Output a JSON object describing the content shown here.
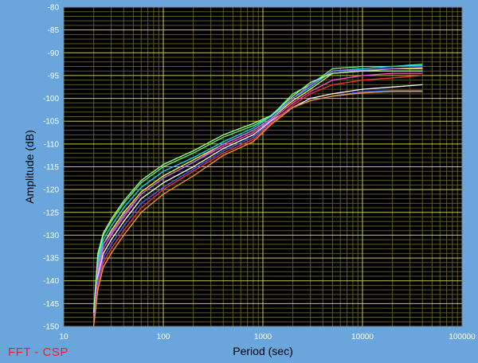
{
  "footer_label": "FFT - CSP",
  "colors": {
    "background": "#6aa6dc",
    "plot_background": "#000000",
    "grid_major": "#c8c84a",
    "grid_minor": "#5a5a26",
    "tick_label": "#ffffff",
    "axis_title": "#000000",
    "footer_label": "#ff1a1a"
  },
  "chart_data": {
    "type": "line",
    "xlabel": "Period (sec)",
    "ylabel": "Amplitude (dB)",
    "x_scale": "log",
    "xlim": [
      10,
      100000
    ],
    "ylim": [
      -150,
      -80
    ],
    "grid": true,
    "x_tick_labels": [
      "10",
      "100",
      "1000",
      "10000",
      "100000"
    ],
    "y_tick_labels": [
      "-80",
      "-85",
      "-90",
      "-95",
      "-100",
      "-105",
      "-110",
      "-115",
      "-120",
      "-125",
      "-130",
      "-135",
      "-140",
      "-145",
      "-150"
    ],
    "series": [
      {
        "color": "#66ff66",
        "values": [
          [
            20,
            -147
          ],
          [
            22,
            -135
          ],
          [
            25,
            -130
          ],
          [
            30,
            -127
          ],
          [
            40,
            -123
          ],
          [
            60,
            -118.5
          ],
          [
            100,
            -115
          ],
          [
            200,
            -112
          ],
          [
            400,
            -108.5
          ],
          [
            800,
            -106
          ],
          [
            1200,
            -104
          ],
          [
            2000,
            -99
          ],
          [
            3000,
            -97
          ],
          [
            5000,
            -93.5
          ],
          [
            10000,
            -93
          ],
          [
            20000,
            -93
          ],
          [
            40000,
            -92.5
          ]
        ]
      },
      {
        "color": "#00e0ff",
        "values": [
          [
            20,
            -148
          ],
          [
            22,
            -136
          ],
          [
            25,
            -131
          ],
          [
            30,
            -128
          ],
          [
            40,
            -124
          ],
          [
            60,
            -119.5
          ],
          [
            100,
            -116
          ],
          [
            200,
            -113
          ],
          [
            400,
            -109.5
          ],
          [
            800,
            -106.5
          ],
          [
            1200,
            -104
          ],
          [
            2000,
            -100
          ],
          [
            3000,
            -97.5
          ],
          [
            5000,
            -94
          ],
          [
            10000,
            -93.5
          ],
          [
            20000,
            -93
          ],
          [
            40000,
            -92.8
          ]
        ]
      },
      {
        "color": "#ffff40",
        "values": [
          [
            20,
            -148
          ],
          [
            22,
            -137
          ],
          [
            25,
            -132
          ],
          [
            30,
            -129
          ],
          [
            40,
            -125
          ],
          [
            60,
            -120.5
          ],
          [
            100,
            -117
          ],
          [
            200,
            -113.5
          ],
          [
            400,
            -110
          ],
          [
            800,
            -107
          ],
          [
            1200,
            -104.5
          ],
          [
            2000,
            -100.5
          ],
          [
            3000,
            -98
          ],
          [
            5000,
            -94.5
          ],
          [
            10000,
            -94
          ],
          [
            20000,
            -93.5
          ],
          [
            40000,
            -93.5
          ]
        ]
      },
      {
        "color": "#ff4fd8",
        "values": [
          [
            20,
            -148
          ],
          [
            22,
            -138
          ],
          [
            25,
            -133
          ],
          [
            30,
            -130
          ],
          [
            40,
            -126
          ],
          [
            60,
            -121
          ],
          [
            100,
            -117.5
          ],
          [
            200,
            -114
          ],
          [
            400,
            -110.5
          ],
          [
            800,
            -107.5
          ],
          [
            1200,
            -104.8
          ],
          [
            2000,
            -101
          ],
          [
            3000,
            -98.5
          ],
          [
            5000,
            -96
          ],
          [
            10000,
            -95
          ],
          [
            20000,
            -94.5
          ],
          [
            40000,
            -94.5
          ]
        ]
      },
      {
        "color": "#ffffff",
        "values": [
          [
            20,
            -149
          ],
          [
            22,
            -139
          ],
          [
            25,
            -134
          ],
          [
            30,
            -131
          ],
          [
            40,
            -127
          ],
          [
            60,
            -122
          ],
          [
            100,
            -118.5
          ],
          [
            200,
            -115
          ],
          [
            400,
            -111
          ],
          [
            800,
            -108
          ],
          [
            1200,
            -105
          ],
          [
            2000,
            -102
          ],
          [
            3000,
            -100
          ],
          [
            5000,
            -99
          ],
          [
            10000,
            -98
          ],
          [
            20000,
            -97.5
          ],
          [
            40000,
            -97
          ]
        ]
      },
      {
        "color": "#4466ff",
        "values": [
          [
            20,
            -149
          ],
          [
            22,
            -140
          ],
          [
            25,
            -135
          ],
          [
            30,
            -132
          ],
          [
            40,
            -128
          ],
          [
            60,
            -123
          ],
          [
            100,
            -119.5
          ],
          [
            200,
            -115.5
          ],
          [
            400,
            -111.5
          ],
          [
            800,
            -108.5
          ],
          [
            1200,
            -105.2
          ],
          [
            2000,
            -102
          ],
          [
            3000,
            -100.5
          ],
          [
            5000,
            -99.5
          ],
          [
            10000,
            -98.5
          ],
          [
            20000,
            -98.3
          ],
          [
            40000,
            -98.3
          ]
        ]
      },
      {
        "color": "#ff3030",
        "values": [
          [
            20,
            -149
          ],
          [
            22,
            -141
          ],
          [
            25,
            -136
          ],
          [
            30,
            -133
          ],
          [
            40,
            -129
          ],
          [
            60,
            -124
          ],
          [
            100,
            -120
          ],
          [
            200,
            -116
          ],
          [
            400,
            -112
          ],
          [
            800,
            -109
          ],
          [
            1200,
            -105.5
          ],
          [
            2000,
            -101.5
          ],
          [
            3000,
            -99
          ],
          [
            5000,
            -97
          ],
          [
            10000,
            -96
          ],
          [
            20000,
            -95.5
          ],
          [
            40000,
            -95
          ]
        ]
      },
      {
        "color": "#ff9a30",
        "values": [
          [
            20,
            -150
          ],
          [
            22,
            -142
          ],
          [
            25,
            -137
          ],
          [
            30,
            -134
          ],
          [
            40,
            -130
          ],
          [
            60,
            -125
          ],
          [
            100,
            -121
          ],
          [
            200,
            -117
          ],
          [
            400,
            -112.5
          ],
          [
            800,
            -109.5
          ],
          [
            1200,
            -105.8
          ],
          [
            2000,
            -102
          ],
          [
            3000,
            -100.5
          ],
          [
            5000,
            -99.5
          ],
          [
            10000,
            -98.8
          ],
          [
            20000,
            -98.5
          ],
          [
            40000,
            -98.5
          ]
        ]
      },
      {
        "color": "#b070ff",
        "values": [
          [
            20,
            -148
          ],
          [
            22,
            -137
          ],
          [
            25,
            -132
          ],
          [
            30,
            -129.5
          ],
          [
            40,
            -125.5
          ],
          [
            60,
            -121
          ],
          [
            100,
            -117.5
          ],
          [
            200,
            -114
          ],
          [
            400,
            -110
          ],
          [
            800,
            -107
          ],
          [
            1200,
            -104.5
          ],
          [
            2000,
            -100
          ],
          [
            3000,
            -97
          ],
          [
            5000,
            -94
          ],
          [
            10000,
            -93.8
          ],
          [
            20000,
            -93.5
          ],
          [
            40000,
            -93.2
          ]
        ]
      },
      {
        "color": "#a0ffa0",
        "values": [
          [
            20,
            -147
          ],
          [
            22,
            -134
          ],
          [
            25,
            -129.5
          ],
          [
            30,
            -126.5
          ],
          [
            40,
            -122.5
          ],
          [
            60,
            -118
          ],
          [
            100,
            -114.5
          ],
          [
            200,
            -111.5
          ],
          [
            400,
            -108
          ],
          [
            800,
            -105.5
          ],
          [
            1200,
            -103.8
          ],
          [
            2000,
            -99.5
          ],
          [
            3000,
            -96.5
          ],
          [
            5000,
            -94.5
          ],
          [
            10000,
            -94
          ],
          [
            20000,
            -94
          ],
          [
            40000,
            -94
          ]
        ]
      }
    ]
  }
}
